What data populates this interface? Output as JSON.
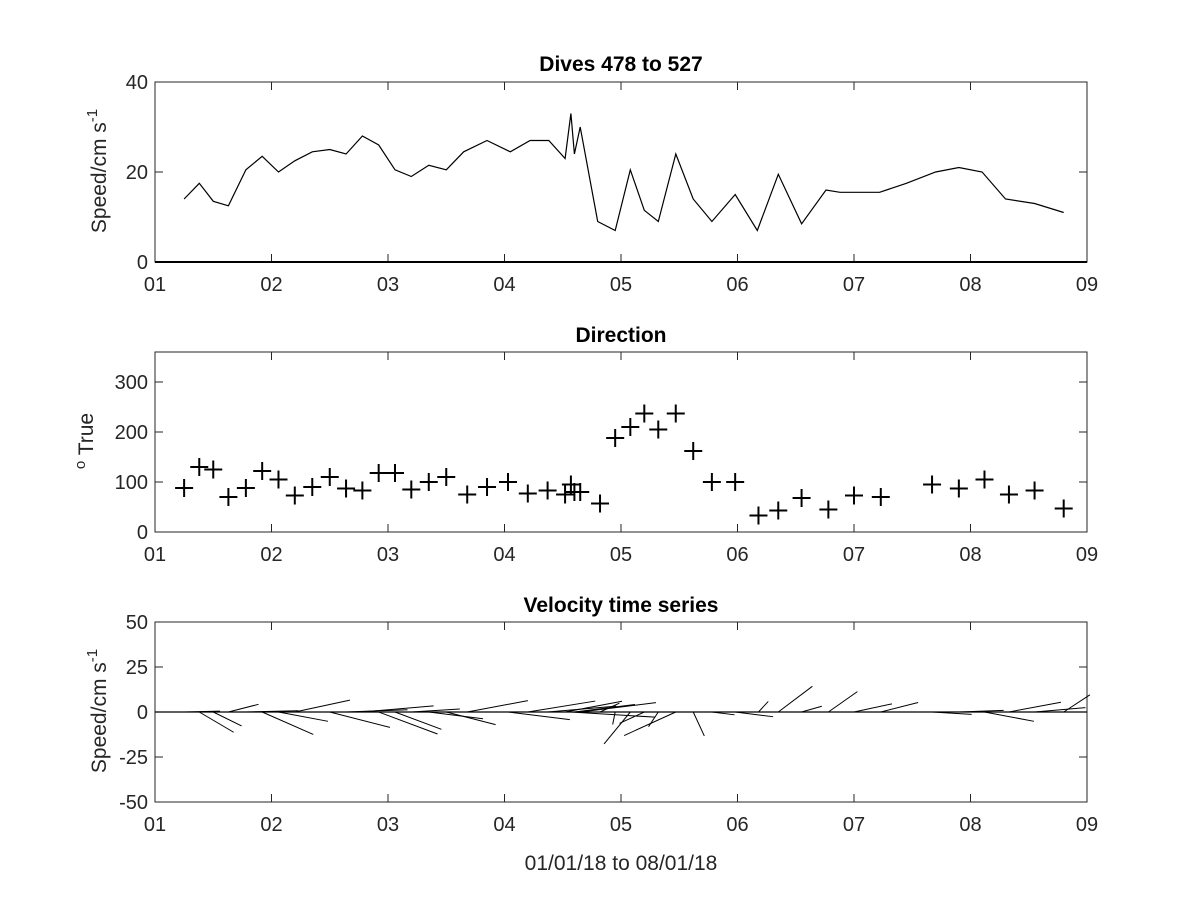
{
  "chart_data": [
    {
      "type": "line",
      "title": "Dives 478 to 527",
      "ylabel": "Speed/cm s",
      "ylabel_superscript": "-1",
      "xlabel": "",
      "xlim": [
        1,
        9
      ],
      "ylim": [
        0,
        40
      ],
      "x_ticks": [
        "01",
        "02",
        "03",
        "04",
        "05",
        "06",
        "07",
        "08",
        "09"
      ],
      "y_ticks": [
        "0",
        "20",
        "40"
      ],
      "x": [
        1.25,
        1.38,
        1.5,
        1.63,
        1.78,
        1.92,
        2.06,
        2.2,
        2.35,
        2.5,
        2.64,
        2.78,
        2.92,
        3.06,
        3.2,
        3.35,
        3.5,
        3.65,
        3.85,
        4.05,
        4.22,
        4.38,
        4.52,
        4.57,
        4.6,
        4.65,
        4.8,
        4.95,
        5.08,
        5.2,
        5.32,
        5.47,
        5.62,
        5.78,
        5.98,
        6.17,
        6.35,
        6.55,
        6.76,
        6.88,
        7.0,
        7.22,
        7.45,
        7.7,
        7.9,
        8.1,
        8.3,
        8.55,
        8.8
      ],
      "values": [
        14,
        17.5,
        13.5,
        12.5,
        20.5,
        23.5,
        20,
        22.5,
        24.5,
        25,
        24,
        28,
        26,
        20.5,
        19,
        21.5,
        20.5,
        24.5,
        27,
        24.5,
        27,
        27,
        23,
        33,
        24,
        30,
        9,
        7,
        20.5,
        11.5,
        9,
        24,
        14,
        9,
        15,
        7,
        19.5,
        8.5,
        16,
        15.5,
        15.5,
        15.5,
        17.5,
        20,
        21,
        20,
        14,
        13,
        11
      ]
    },
    {
      "type": "scatter",
      "title": "Direction",
      "ylabel": "True",
      "ylabel_prefix": "o",
      "xlabel": "",
      "xlim": [
        1,
        9
      ],
      "ylim": [
        0,
        360
      ],
      "x_ticks": [
        "01",
        "02",
        "03",
        "04",
        "05",
        "06",
        "07",
        "08",
        "09"
      ],
      "y_ticks": [
        "0",
        "100",
        "200",
        "300"
      ],
      "x": [
        1.25,
        1.38,
        1.5,
        1.63,
        1.78,
        1.92,
        2.06,
        2.2,
        2.35,
        2.5,
        2.64,
        2.78,
        2.92,
        3.06,
        3.2,
        3.35,
        3.5,
        3.68,
        3.85,
        4.03,
        4.2,
        4.37,
        4.52,
        4.57,
        4.6,
        4.65,
        4.82,
        4.95,
        5.08,
        5.2,
        5.32,
        5.47,
        5.62,
        5.78,
        5.98,
        6.18,
        6.35,
        6.55,
        6.78,
        7.0,
        7.23,
        7.67,
        7.9,
        8.12,
        8.33,
        8.55,
        8.8
      ],
      "values": [
        88,
        130,
        125,
        70,
        88,
        122,
        105,
        73,
        90,
        110,
        87,
        83,
        118,
        118,
        85,
        100,
        110,
        75,
        90,
        100,
        77,
        83,
        75,
        95,
        80,
        80,
        57,
        188,
        210,
        237,
        205,
        237,
        162,
        100,
        100,
        33,
        43,
        68,
        45,
        73,
        70,
        95,
        87,
        105,
        75,
        83,
        47
      ]
    },
    {
      "type": "quiver",
      "title": "Velocity time series",
      "ylabel": "Speed/cm s",
      "ylabel_superscript": "-1",
      "xlabel": "01/01/18 to 08/01/18",
      "xlim": [
        1,
        9
      ],
      "ylim": [
        -50,
        50
      ],
      "x_ticks": [
        "01",
        "02",
        "03",
        "04",
        "05",
        "06",
        "07",
        "08",
        "09"
      ],
      "y_ticks": [
        "-50",
        "-25",
        "0",
        "25",
        "50"
      ],
      "note": "stick vectors: u = speed·sin(direction), v = speed·cos(direction) from the two panels above",
      "x_days_per_cm_s": 0.022
    }
  ]
}
